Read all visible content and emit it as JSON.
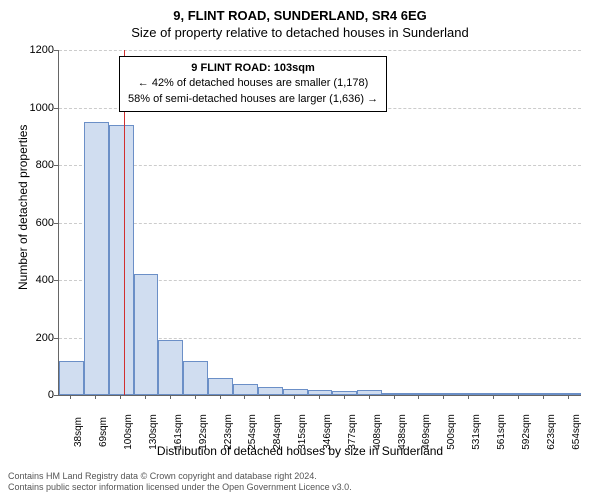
{
  "title": "9, FLINT ROAD, SUNDERLAND, SR4 6EG",
  "subtitle": "Size of property relative to detached houses in Sunderland",
  "ylabel": "Number of detached properties",
  "xlabel": "Distribution of detached houses by size in Sunderland",
  "info_box": {
    "line1": "9 FLINT ROAD: 103sqm",
    "line2": "← 42% of detached houses are smaller (1,178)",
    "line3": "58% of semi-detached houses are larger (1,636) →"
  },
  "chart": {
    "type": "histogram",
    "bar_fill": "#d0ddf0",
    "bar_stroke": "#6b8fc7",
    "grid_color": "#cccccc",
    "marker_color": "#d03030",
    "background": "#ffffff",
    "ylim": [
      0,
      1200
    ],
    "ytick_step": 200,
    "yticks": [
      0,
      200,
      400,
      600,
      800,
      1000,
      1200
    ],
    "x_categories": [
      "38sqm",
      "69sqm",
      "100sqm",
      "130sqm",
      "161sqm",
      "192sqm",
      "223sqm",
      "254sqm",
      "284sqm",
      "315sqm",
      "346sqm",
      "377sqm",
      "408sqm",
      "438sqm",
      "469sqm",
      "500sqm",
      "531sqm",
      "561sqm",
      "592sqm",
      "623sqm",
      "654sqm"
    ],
    "values": [
      120,
      950,
      940,
      420,
      190,
      120,
      60,
      38,
      28,
      22,
      18,
      14,
      16,
      8,
      5,
      4,
      3,
      4,
      3,
      2,
      2
    ],
    "marker_x_index": 2.1,
    "marker_value": "103sqm",
    "bar_width_ratio": 1.0,
    "title_fontsize": 13,
    "label_fontsize": 12,
    "tick_fontsize": 10
  },
  "attribution": {
    "line1": "Contains HM Land Registry data © Crown copyright and database right 2024.",
    "line2": "Contains public sector information licensed under the Open Government Licence v3.0."
  }
}
